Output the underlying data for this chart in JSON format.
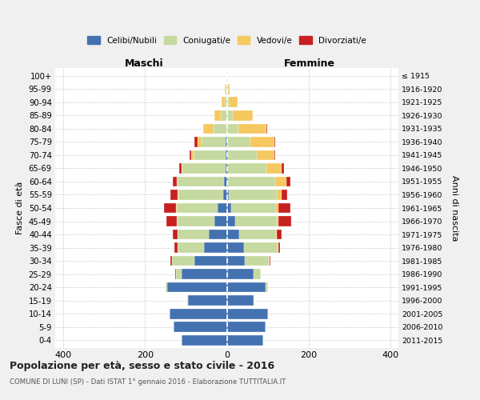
{
  "age_groups": [
    "0-4",
    "5-9",
    "10-14",
    "15-19",
    "20-24",
    "25-29",
    "30-34",
    "35-39",
    "40-44",
    "45-49",
    "50-54",
    "55-59",
    "60-64",
    "65-69",
    "70-74",
    "75-79",
    "80-84",
    "85-89",
    "90-94",
    "95-99",
    "100+"
  ],
  "birth_years": [
    "2011-2015",
    "2006-2010",
    "2001-2005",
    "1996-2000",
    "1991-1995",
    "1986-1990",
    "1981-1985",
    "1976-1980",
    "1971-1975",
    "1966-1970",
    "1961-1965",
    "1956-1960",
    "1951-1955",
    "1946-1950",
    "1941-1945",
    "1936-1940",
    "1931-1935",
    "1926-1930",
    "1921-1925",
    "1916-1920",
    "≤ 1915"
  ],
  "maschi": {
    "celibi": [
      110,
      130,
      140,
      95,
      145,
      110,
      80,
      55,
      45,
      30,
      22,
      8,
      6,
      3,
      2,
      2,
      0,
      0,
      0,
      0,
      0
    ],
    "coniugati": [
      0,
      0,
      0,
      2,
      5,
      15,
      55,
      65,
      75,
      90,
      100,
      110,
      115,
      105,
      80,
      60,
      32,
      15,
      5,
      2,
      1
    ],
    "vedovi": [
      0,
      0,
      0,
      0,
      0,
      0,
      0,
      0,
      0,
      2,
      2,
      2,
      2,
      3,
      5,
      10,
      25,
      15,
      8,
      2,
      0
    ],
    "divorziati": [
      0,
      0,
      0,
      0,
      0,
      2,
      3,
      8,
      12,
      25,
      30,
      18,
      10,
      5,
      5,
      8,
      0,
      0,
      0,
      0,
      0
    ]
  },
  "femmine": {
    "nubili": [
      90,
      95,
      100,
      65,
      95,
      65,
      45,
      42,
      30,
      20,
      10,
      5,
      3,
      2,
      2,
      0,
      0,
      0,
      0,
      0,
      0
    ],
    "coniugate": [
      0,
      0,
      0,
      2,
      5,
      18,
      58,
      82,
      90,
      102,
      108,
      118,
      115,
      95,
      72,
      58,
      28,
      15,
      5,
      2,
      1
    ],
    "vedove": [
      0,
      0,
      0,
      0,
      0,
      0,
      2,
      2,
      3,
      5,
      8,
      12,
      28,
      38,
      42,
      58,
      68,
      48,
      22,
      5,
      0
    ],
    "divorziate": [
      0,
      0,
      0,
      0,
      0,
      0,
      2,
      5,
      12,
      30,
      30,
      12,
      10,
      5,
      2,
      3,
      2,
      0,
      0,
      0,
      0
    ]
  },
  "colors": {
    "celibi": "#4472b0",
    "coniugati": "#c5d9a0",
    "vedovi": "#f5c860",
    "divorziati": "#c82020"
  },
  "legend_labels": [
    "Celibi/Nubili",
    "Coniugati/e",
    "Vedovi/e",
    "Divorziati/e"
  ],
  "ylabel_left": "Fasce di età",
  "ylabel_right": "Anni di nascita",
  "title_maschi": "Maschi",
  "title_femmine": "Femmine",
  "title_main": "Popolazione per età, sesso e stato civile - 2016",
  "subtitle": "COMUNE DI LUNI (SP) - Dati ISTAT 1° gennaio 2016 - Elaborazione TUTTITALIA.IT",
  "xlim": 420,
  "background_color": "#f0f0f0",
  "plot_bg": "#ffffff"
}
